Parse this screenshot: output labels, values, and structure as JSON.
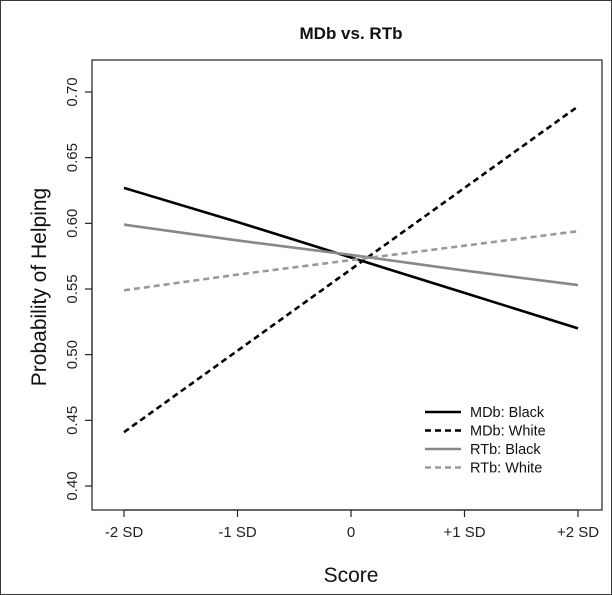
{
  "chart_data": {
    "type": "line",
    "title": "MDb vs. RTb",
    "xlabel": "Score",
    "ylabel": "Probability of Helping",
    "categories": [
      "-2 SD",
      "-1 SD",
      "0",
      "+1 SD",
      "+2 SD"
    ],
    "ylim": [
      0.4,
      0.7
    ],
    "yticks": [
      "0.40",
      "0.45",
      "0.50",
      "0.55",
      "0.60",
      "0.65",
      "0.70"
    ],
    "grid": false,
    "legend_position": "bottom-right",
    "series": [
      {
        "name": "MDb: Black",
        "values": [
          0.627,
          0.601,
          0.574,
          0.547,
          0.52
        ],
        "color": "#000000",
        "dash": "solid"
      },
      {
        "name": "MDb: White",
        "values": [
          0.441,
          0.503,
          0.565,
          0.627,
          0.689
        ],
        "color": "#000000",
        "dash": "dashed"
      },
      {
        "name": "RTb: Black",
        "values": [
          0.599,
          0.587,
          0.576,
          0.564,
          0.553
        ],
        "color": "#888888",
        "dash": "solid"
      },
      {
        "name": "RTb: White",
        "values": [
          0.549,
          0.561,
          0.572,
          0.583,
          0.594
        ],
        "color": "#999999",
        "dash": "dashed"
      }
    ]
  }
}
